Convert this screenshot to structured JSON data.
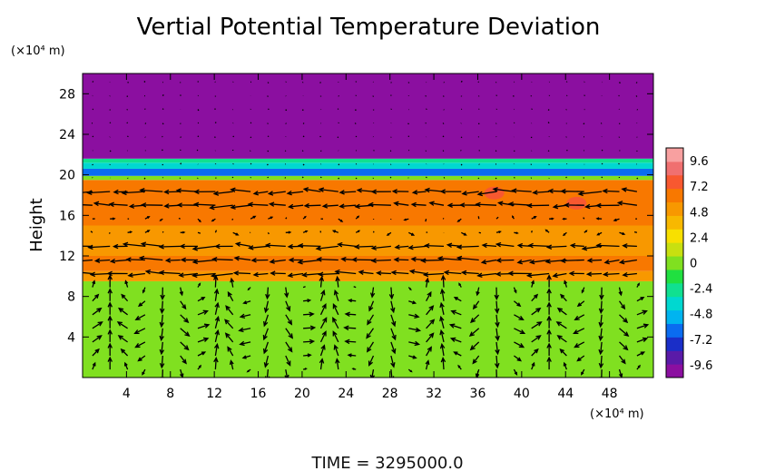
{
  "chart_data": {
    "type": "heatmap",
    "title": "Vertial Potential Temperature Deviation",
    "ylabel": "Height",
    "x_unit": "(×10⁴ m)",
    "y_unit": "(×10⁴ m)",
    "xlim": [
      0,
      52
    ],
    "ylim": [
      0,
      30
    ],
    "x_ticks": [
      "4",
      "8",
      "12",
      "16",
      "20",
      "24",
      "28",
      "32",
      "36",
      "40",
      "44",
      "48"
    ],
    "y_ticks": [
      "4",
      "8",
      "12",
      "16",
      "20",
      "24",
      "28"
    ],
    "x_tick_values": [
      4,
      8,
      12,
      16,
      20,
      24,
      28,
      32,
      36,
      40,
      44,
      48
    ],
    "y_tick_values": [
      4,
      8,
      12,
      16,
      20,
      24,
      28
    ],
    "colorbar": {
      "min": -10.8,
      "max": 10.8,
      "tick_labels": [
        "9.6",
        "7.2",
        "4.8",
        "2.4",
        "0",
        "-2.4",
        "-4.8",
        "-7.2",
        "-9.6"
      ],
      "tick_values": [
        9.6,
        7.2,
        4.8,
        2.4,
        0,
        -2.4,
        -4.8,
        -7.2,
        -9.6
      ],
      "colors": [
        "#8b0fa0",
        "#5a1aa8",
        "#1a2ec8",
        "#0a6cf0",
        "#00b4f0",
        "#00d8d0",
        "#10e090",
        "#20e040",
        "#80e020",
        "#c8e010",
        "#f8e000",
        "#f8b800",
        "#f89800",
        "#f87800",
        "#f85830",
        "#f07070",
        "#f8a0a0"
      ]
    },
    "layers": [
      {
        "y_from": 0,
        "y_to": 9.5,
        "value": 0
      },
      {
        "y_from": 9.5,
        "y_to": 10.5,
        "value": 5.5
      },
      {
        "y_from": 10.5,
        "y_to": 12,
        "value": 6.5
      },
      {
        "y_from": 12,
        "y_to": 15,
        "value": 5.5
      },
      {
        "y_from": 15,
        "y_to": 19.5,
        "value": 6.5
      },
      {
        "y_from": 19.5,
        "y_to": 19.9,
        "value": 0
      },
      {
        "y_from": 19.9,
        "y_to": 20.6,
        "value": -6
      },
      {
        "y_from": 20.6,
        "y_to": 21.2,
        "value": -4
      },
      {
        "y_from": 21.2,
        "y_to": 21.6,
        "value": -2
      },
      {
        "y_from": 21.6,
        "y_to": 30,
        "value": -10.8
      }
    ],
    "hotspots": [
      {
        "x": 37.5,
        "y": 18.2,
        "value": 8.2
      },
      {
        "x": 45,
        "y": 17.2,
        "value": 7.4
      }
    ],
    "vector_field": "wind vectors overlaid",
    "time_label": "TIME  =  3295000.0"
  }
}
